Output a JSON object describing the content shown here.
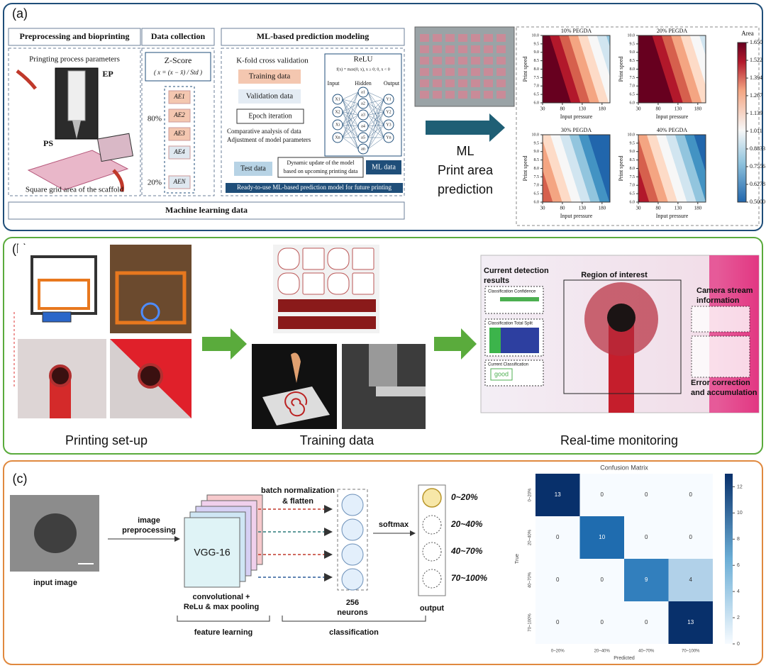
{
  "panel_a": {
    "label": "(a)",
    "headers": [
      "Preprocessing and bioprinting",
      "Data collection",
      "ML-based prediction modeling"
    ],
    "footer": "Machine learning data",
    "bioprinting": {
      "parameters": "Pringting process parameters",
      "ep": "EP",
      "ps": "PS",
      "caption": "Square grid area of the scaffold"
    },
    "data_collection": {
      "zscore": "Z-Score",
      "formula": "( x = (x − x̄) / Std )",
      "blocks": [
        "AE1",
        "AE2",
        "AE3",
        "AE4",
        "AEN"
      ],
      "splits": [
        "80%",
        "20%"
      ]
    },
    "modeling": {
      "kfold": "K-fold cross validation",
      "training": "Training data",
      "validation": "Validation data",
      "epoch": "Epoch iteration",
      "bullets": [
        "Comparative analysis of data",
        "Adjustment of model parameters"
      ],
      "test": "Test data",
      "dynamic": [
        "Dynamic update of the model",
        "based on upcoming printing data"
      ],
      "ml_data": "ML data",
      "ready": "Ready-to-use ML-based prediction model for future printing",
      "relu": "ReLU",
      "relu_formula": "f(x) = max(0, x), x ≥ 0; 0, x < 0",
      "layers": [
        "Input",
        "Hidden",
        "Output"
      ],
      "inputs": [
        "X1",
        "X2",
        "Xi",
        "Xn"
      ],
      "hidden": [
        "a1",
        "a2",
        "a3",
        "a4",
        "a5",
        "an"
      ],
      "outputs": [
        "Y1",
        "Y2",
        "Y3",
        "Yn"
      ]
    },
    "prediction": [
      "ML",
      "Print area",
      "prediction"
    ],
    "contour": {
      "titles": [
        "10% PEGDA",
        "20% PEGDA",
        "30% PEGDA",
        "40% PEGDA"
      ],
      "xlabel": "Input pressure",
      "ylabel": "Print speed",
      "xlim": [
        30,
        200
      ],
      "xticks": [
        30,
        80,
        130,
        180
      ],
      "ylim": [
        6,
        10
      ],
      "yticks": [
        {
          "value": 6,
          "label": "6.0"
        },
        {
          "value": 6.5,
          "label": "6.5"
        },
        {
          "value": 7,
          "label": "7.0"
        },
        {
          "value": 7.5,
          "label": "7.5"
        },
        {
          "value": 8,
          "label": "8.0"
        },
        {
          "value": 8.5,
          "label": "8.5"
        },
        {
          "value": 9,
          "label": "9.0"
        },
        {
          "value": 9.5,
          "label": "9.5"
        },
        {
          "value": 10,
          "label": "10.0"
        }
      ],
      "colorbar_label": "Area",
      "clim": [
        0.5,
        1.65
      ],
      "cticks": [
        {
          "value": 1.65,
          "label": "1.650"
        },
        {
          "value": 1.522,
          "label": "1.522"
        },
        {
          "value": 1.394,
          "label": "1.394"
        },
        {
          "value": 1.267,
          "label": "1.267"
        },
        {
          "value": 1.139,
          "label": "1.139"
        },
        {
          "value": 1.011,
          "label": "1.011"
        },
        {
          "value": 0.8833,
          "label": "0.8833"
        },
        {
          "value": 0.7556,
          "label": "0.7556"
        },
        {
          "value": 0.6278,
          "label": "0.6278"
        },
        {
          "value": 0.5,
          "label": "0.5000"
        }
      ]
    }
  },
  "panel_b": {
    "label": "(b)",
    "captions": [
      "Printing set-up",
      "Training data",
      "Real-time monitoring"
    ],
    "monitor": {
      "detection": [
        "Current detection",
        "results"
      ],
      "roi": "Region of interest",
      "camera": [
        "Camera stream",
        "information"
      ],
      "error": [
        "Error correction",
        "and accumulation"
      ],
      "confidence": "Classification Confidence",
      "split": "Classification Total Split",
      "current": "Current Classification",
      "good": "good"
    }
  },
  "panel_c": {
    "label": "(c)",
    "input": "input image",
    "preprocess": [
      "image",
      "preprocessing"
    ],
    "vgg": "VGG-16",
    "conv": [
      "convolutional +",
      "ReLu & max pooling"
    ],
    "feature": "feature learning",
    "batch": [
      "batch normalization",
      "& flatten"
    ],
    "neurons": [
      "256",
      "neurons"
    ],
    "softmax": "softmax",
    "output": "output",
    "classification": "classification",
    "classes": [
      "0~20%",
      "20~40%",
      "40~70%",
      "70~100%"
    ]
  },
  "confusion": {
    "title": "Confusion Matrix",
    "xlabel": "Predicted",
    "ylabel": "True",
    "categories": [
      "0~20%",
      "20~40%",
      "40~70%",
      "70~100%"
    ],
    "matrix": [
      [
        13,
        0,
        0,
        0
      ],
      [
        0,
        10,
        0,
        0
      ],
      [
        0,
        0,
        9,
        4
      ],
      [
        0,
        0,
        0,
        13
      ]
    ],
    "clim": [
      0,
      13
    ],
    "cticks": [
      0,
      2,
      4,
      6,
      8,
      10,
      12
    ]
  }
}
